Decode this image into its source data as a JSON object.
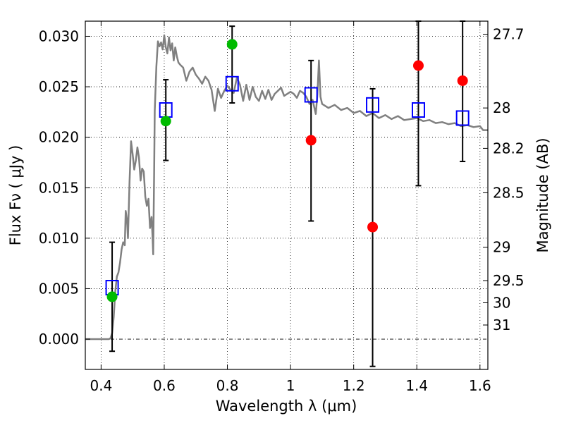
{
  "chart_data": {
    "type": "scatter",
    "xlabel": "Wavelength  λ (μm)",
    "ylabel": "Flux  Fν  ( μJy )",
    "y2label": "Magnitude (AB)",
    "xlim": [
      0.35,
      1.625
    ],
    "ylim": [
      -0.003,
      0.0315
    ],
    "grid": true,
    "x_ticks": [
      {
        "value": 0.4,
        "label": "0.4"
      },
      {
        "value": 0.6,
        "label": "0.6"
      },
      {
        "value": 0.8,
        "label": "0.8"
      },
      {
        "value": 1.0,
        "label": "1"
      },
      {
        "value": 1.2,
        "label": "1.2"
      },
      {
        "value": 1.4,
        "label": "1.4"
      },
      {
        "value": 1.6,
        "label": "1.6"
      }
    ],
    "y_ticks": [
      {
        "value": 0.0,
        "label": "0.000"
      },
      {
        "value": 0.005,
        "label": "0.005"
      },
      {
        "value": 0.01,
        "label": "0.010"
      },
      {
        "value": 0.015,
        "label": "0.015"
      },
      {
        "value": 0.02,
        "label": "0.020"
      },
      {
        "value": 0.025,
        "label": "0.025"
      },
      {
        "value": 0.03,
        "label": "0.030"
      }
    ],
    "y2_ticks": [
      {
        "flux": 0.0302,
        "label": "27.7"
      },
      {
        "flux": 0.0229,
        "label": "28"
      },
      {
        "flux": 0.0189,
        "label": "28.2"
      },
      {
        "flux": 0.0145,
        "label": "28.5"
      },
      {
        "flux": 0.0091,
        "label": "29"
      },
      {
        "flux": 0.0058,
        "label": "29.5"
      },
      {
        "flux": 0.0036,
        "label": "30"
      },
      {
        "flux": 0.0014,
        "label": "31"
      }
    ],
    "model_spectrum": {
      "color": "#808080",
      "x": [
        0.35,
        0.41,
        0.42,
        0.425,
        0.43,
        0.435,
        0.44,
        0.445,
        0.45,
        0.455,
        0.46,
        0.465,
        0.47,
        0.475,
        0.478,
        0.482,
        0.485,
        0.49,
        0.495,
        0.5,
        0.505,
        0.51,
        0.515,
        0.52,
        0.525,
        0.53,
        0.535,
        0.54,
        0.545,
        0.55,
        0.555,
        0.56,
        0.563,
        0.565,
        0.568,
        0.57,
        0.575,
        0.58,
        0.585,
        0.59,
        0.595,
        0.6,
        0.605,
        0.61,
        0.615,
        0.62,
        0.625,
        0.63,
        0.635,
        0.64,
        0.645,
        0.65,
        0.66,
        0.67,
        0.68,
        0.69,
        0.7,
        0.71,
        0.72,
        0.73,
        0.74,
        0.75,
        0.76,
        0.77,
        0.78,
        0.79,
        0.8,
        0.81,
        0.82,
        0.83,
        0.84,
        0.85,
        0.86,
        0.87,
        0.88,
        0.89,
        0.9,
        0.91,
        0.92,
        0.93,
        0.94,
        0.95,
        0.96,
        0.97,
        0.98,
        0.99,
        1.0,
        1.01,
        1.02,
        1.03,
        1.04,
        1.05,
        1.06,
        1.07,
        1.08,
        1.085,
        1.09,
        1.095,
        1.1,
        1.12,
        1.14,
        1.16,
        1.18,
        1.2,
        1.22,
        1.24,
        1.26,
        1.28,
        1.3,
        1.32,
        1.34,
        1.36,
        1.38,
        1.4,
        1.42,
        1.44,
        1.46,
        1.48,
        1.5,
        1.52,
        1.54,
        1.56,
        1.58,
        1.6,
        1.61,
        1.625
      ],
      "y": [
        0.0,
        0.0,
        0.0,
        0.0,
        0.0001,
        0.0006,
        0.0022,
        0.0047,
        0.0062,
        0.0066,
        0.0076,
        0.0089,
        0.0096,
        0.0093,
        0.0127,
        0.0118,
        0.01,
        0.0155,
        0.0196,
        0.0183,
        0.0168,
        0.0177,
        0.019,
        0.018,
        0.0157,
        0.0169,
        0.0166,
        0.0141,
        0.0132,
        0.0139,
        0.011,
        0.0121,
        0.0101,
        0.0084,
        0.0163,
        0.0226,
        0.027,
        0.0295,
        0.029,
        0.0294,
        0.0287,
        0.0301,
        0.0289,
        0.0283,
        0.0299,
        0.0286,
        0.0293,
        0.0276,
        0.0289,
        0.028,
        0.0274,
        0.0272,
        0.0269,
        0.0256,
        0.0265,
        0.0269,
        0.0262,
        0.0258,
        0.0253,
        0.026,
        0.0256,
        0.0247,
        0.0226,
        0.0248,
        0.0239,
        0.0246,
        0.0251,
        0.0247,
        0.0244,
        0.0259,
        0.0252,
        0.0236,
        0.0252,
        0.0237,
        0.025,
        0.024,
        0.0236,
        0.0246,
        0.0238,
        0.0247,
        0.0237,
        0.0243,
        0.0246,
        0.0249,
        0.0241,
        0.0243,
        0.0245,
        0.0243,
        0.0239,
        0.0246,
        0.0244,
        0.024,
        0.0233,
        0.0237,
        0.0223,
        0.0242,
        0.0276,
        0.024,
        0.0233,
        0.0229,
        0.0232,
        0.0227,
        0.0229,
        0.0224,
        0.0226,
        0.0221,
        0.0224,
        0.0219,
        0.0222,
        0.0218,
        0.0221,
        0.0217,
        0.0218,
        0.0219,
        0.0216,
        0.0217,
        0.0214,
        0.0215,
        0.0213,
        0.0214,
        0.0211,
        0.0212,
        0.021,
        0.0211,
        0.0207,
        0.0207
      ]
    },
    "series": [
      {
        "marker": "open-square",
        "color": "#0000ff",
        "x": [
          0.435,
          0.605,
          0.815,
          1.065,
          1.26,
          1.405,
          1.545
        ],
        "y": [
          0.0051,
          0.0227,
          0.0253,
          0.0242,
          0.0232,
          0.0227,
          0.0219
        ],
        "yerr_low": [
          -0.0012,
          0.0177,
          0.0234,
          0.0117,
          -0.0027,
          0.0152,
          0.0176
        ],
        "yerr_high": [
          0.0096,
          0.0257,
          0.031,
          0.0276,
          0.0248,
          0.0315,
          0.0315
        ]
      },
      {
        "marker": "filled-circle",
        "color": "#00bb00",
        "x": [
          0.435,
          0.605,
          0.815
        ],
        "y": [
          0.0042,
          0.0216,
          0.0292
        ]
      },
      {
        "marker": "filled-circle",
        "color": "#ff0000",
        "x": [
          1.065,
          1.26,
          1.405,
          1.545
        ],
        "y": [
          0.0197,
          0.0111,
          0.0271,
          0.0256
        ]
      }
    ]
  }
}
